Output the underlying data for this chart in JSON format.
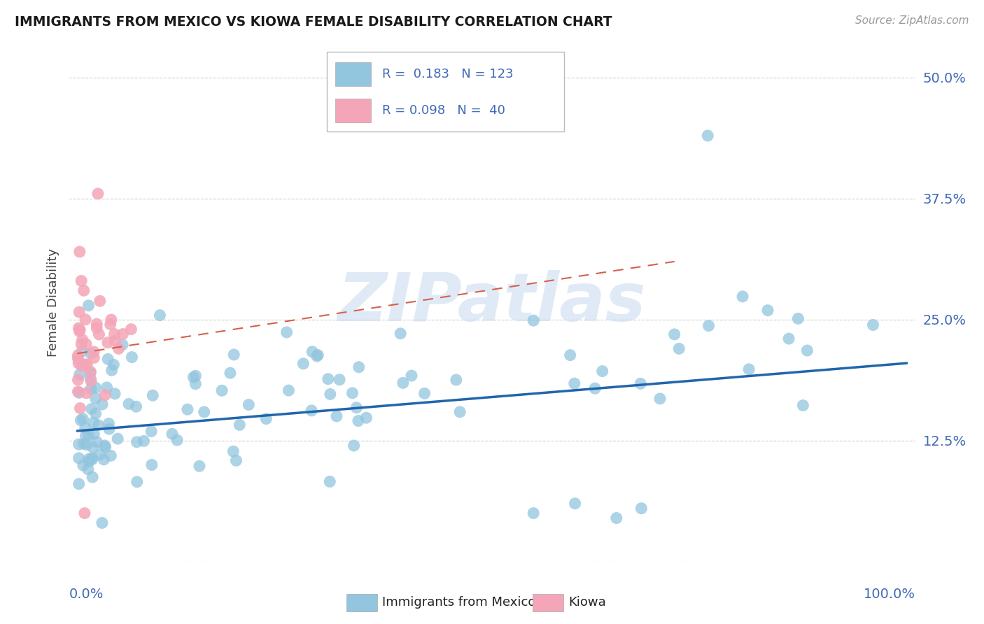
{
  "title": "IMMIGRANTS FROM MEXICO VS KIOWA FEMALE DISABILITY CORRELATION CHART",
  "source": "Source: ZipAtlas.com",
  "ylabel": "Female Disability",
  "legend_label1": "Immigrants from Mexico",
  "legend_label2": "Kiowa",
  "legend_R1": "0.183",
  "legend_N1": "123",
  "legend_R2": "0.098",
  "legend_N2": "40",
  "blue_color": "#92c5de",
  "pink_color": "#f4a6b8",
  "blue_line_color": "#2166ac",
  "pink_line_color": "#d6604d",
  "watermark": "ZIPatlas",
  "background_color": "#ffffff",
  "grid_color": "#d0d0d0",
  "right_label_color": "#4169b8",
  "ytick_labels": [
    "",
    "12.5%",
    "25.0%",
    "37.5%",
    "50.0%"
  ],
  "ytick_vals": [
    0.0,
    0.125,
    0.25,
    0.375,
    0.5
  ],
  "xlim": [
    -0.01,
    1.01
  ],
  "ylim": [
    0.0,
    0.535
  ],
  "blue_trend": [
    0.0,
    1.0,
    0.135,
    0.205
  ],
  "pink_trend": [
    0.0,
    0.72,
    0.215,
    0.31
  ]
}
